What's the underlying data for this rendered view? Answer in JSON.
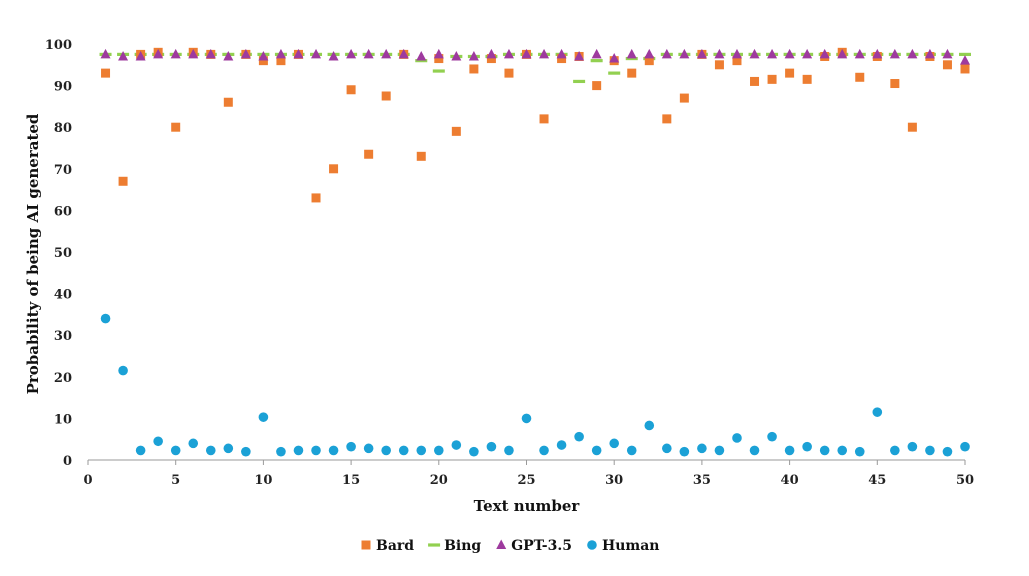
{
  "chart_data": {
    "type": "scatter",
    "xlabel": "Text number",
    "ylabel": "Probability of being AI generated",
    "xlim": [
      0,
      50
    ],
    "ylim": [
      0,
      100
    ],
    "x_ticks": [
      0,
      5,
      10,
      15,
      20,
      25,
      30,
      35,
      40,
      45,
      50
    ],
    "y_ticks": [
      0,
      10,
      20,
      30,
      40,
      50,
      60,
      70,
      80,
      90,
      100
    ],
    "grid": false,
    "legend_position": "bottom",
    "x": [
      1,
      2,
      3,
      4,
      5,
      6,
      7,
      8,
      9,
      10,
      11,
      12,
      13,
      14,
      15,
      16,
      17,
      18,
      19,
      20,
      21,
      22,
      23,
      24,
      25,
      26,
      27,
      28,
      29,
      30,
      31,
      32,
      33,
      34,
      35,
      36,
      37,
      38,
      39,
      40,
      41,
      42,
      43,
      44,
      45,
      46,
      47,
      48,
      49,
      50
    ],
    "series": [
      {
        "name": "Bard",
        "marker": "square",
        "color": "#ED7D31",
        "values": [
          93,
          67,
          97.5,
          98,
          80,
          98,
          97.5,
          86,
          97.5,
          96,
          96,
          97.5,
          63,
          70,
          89,
          73.5,
          87.5,
          97.5,
          73,
          96.5,
          79,
          94,
          96.5,
          93,
          97.5,
          82,
          96.5,
          97,
          90,
          96,
          93,
          96,
          82,
          87,
          97.5,
          95,
          96,
          91,
          91.5,
          93,
          91.5,
          97,
          98,
          92,
          97,
          90.5,
          80,
          97,
          95,
          94
        ]
      },
      {
        "name": "Bing",
        "marker": "dash",
        "color": "#92D050",
        "values": [
          97.5,
          97.5,
          97.5,
          97.5,
          97.5,
          97.5,
          97.5,
          97.5,
          97.5,
          97.5,
          97.5,
          97.5,
          97.5,
          97.5,
          97.5,
          97.5,
          97.5,
          97.5,
          96,
          93.5,
          97,
          97,
          97,
          97.5,
          97.5,
          97.5,
          97.5,
          91,
          96,
          93,
          96.5,
          96.5,
          97.5,
          97.5,
          97.5,
          97.5,
          97.5,
          97.5,
          97.5,
          97.5,
          97.5,
          97.5,
          97.5,
          97.5,
          97.5,
          97.5,
          97.5,
          97.5,
          97.5,
          97.5
        ]
      },
      {
        "name": "GPT-3.5",
        "marker": "triangle",
        "color": "#9E3A9E",
        "values": [
          97.5,
          97,
          97,
          97.5,
          97.5,
          97.5,
          97.5,
          97,
          97.5,
          97,
          97.5,
          97.5,
          97.5,
          97,
          97.5,
          97.5,
          97.5,
          97.5,
          97,
          97.5,
          97,
          97,
          97.5,
          97.5,
          97.5,
          97.5,
          97.5,
          97,
          97.5,
          96.5,
          97.5,
          97.5,
          97.5,
          97.5,
          97.5,
          97.5,
          97.5,
          97.5,
          97.5,
          97.5,
          97.5,
          97.5,
          97.5,
          97.5,
          97.5,
          97.5,
          97.5,
          97.5,
          97.5,
          96
        ]
      },
      {
        "name": "Human",
        "marker": "circle",
        "color": "#1BA1D6",
        "values": [
          34,
          21.5,
          2.3,
          4.5,
          2.3,
          4,
          2.3,
          2.8,
          2,
          10.3,
          2,
          2.3,
          2.3,
          2.3,
          3.2,
          2.8,
          2.3,
          2.3,
          2.3,
          2.3,
          3.6,
          2,
          3.2,
          2.3,
          10,
          2.3,
          3.6,
          5.6,
          2.3,
          4,
          2.3,
          8.3,
          2.8,
          2,
          2.8,
          2.3,
          5.3,
          2.3,
          5.6,
          2.3,
          3.2,
          2.3,
          2.3,
          2,
          11.5,
          2.3,
          3.2,
          2.3,
          2,
          3.2
        ]
      }
    ]
  }
}
